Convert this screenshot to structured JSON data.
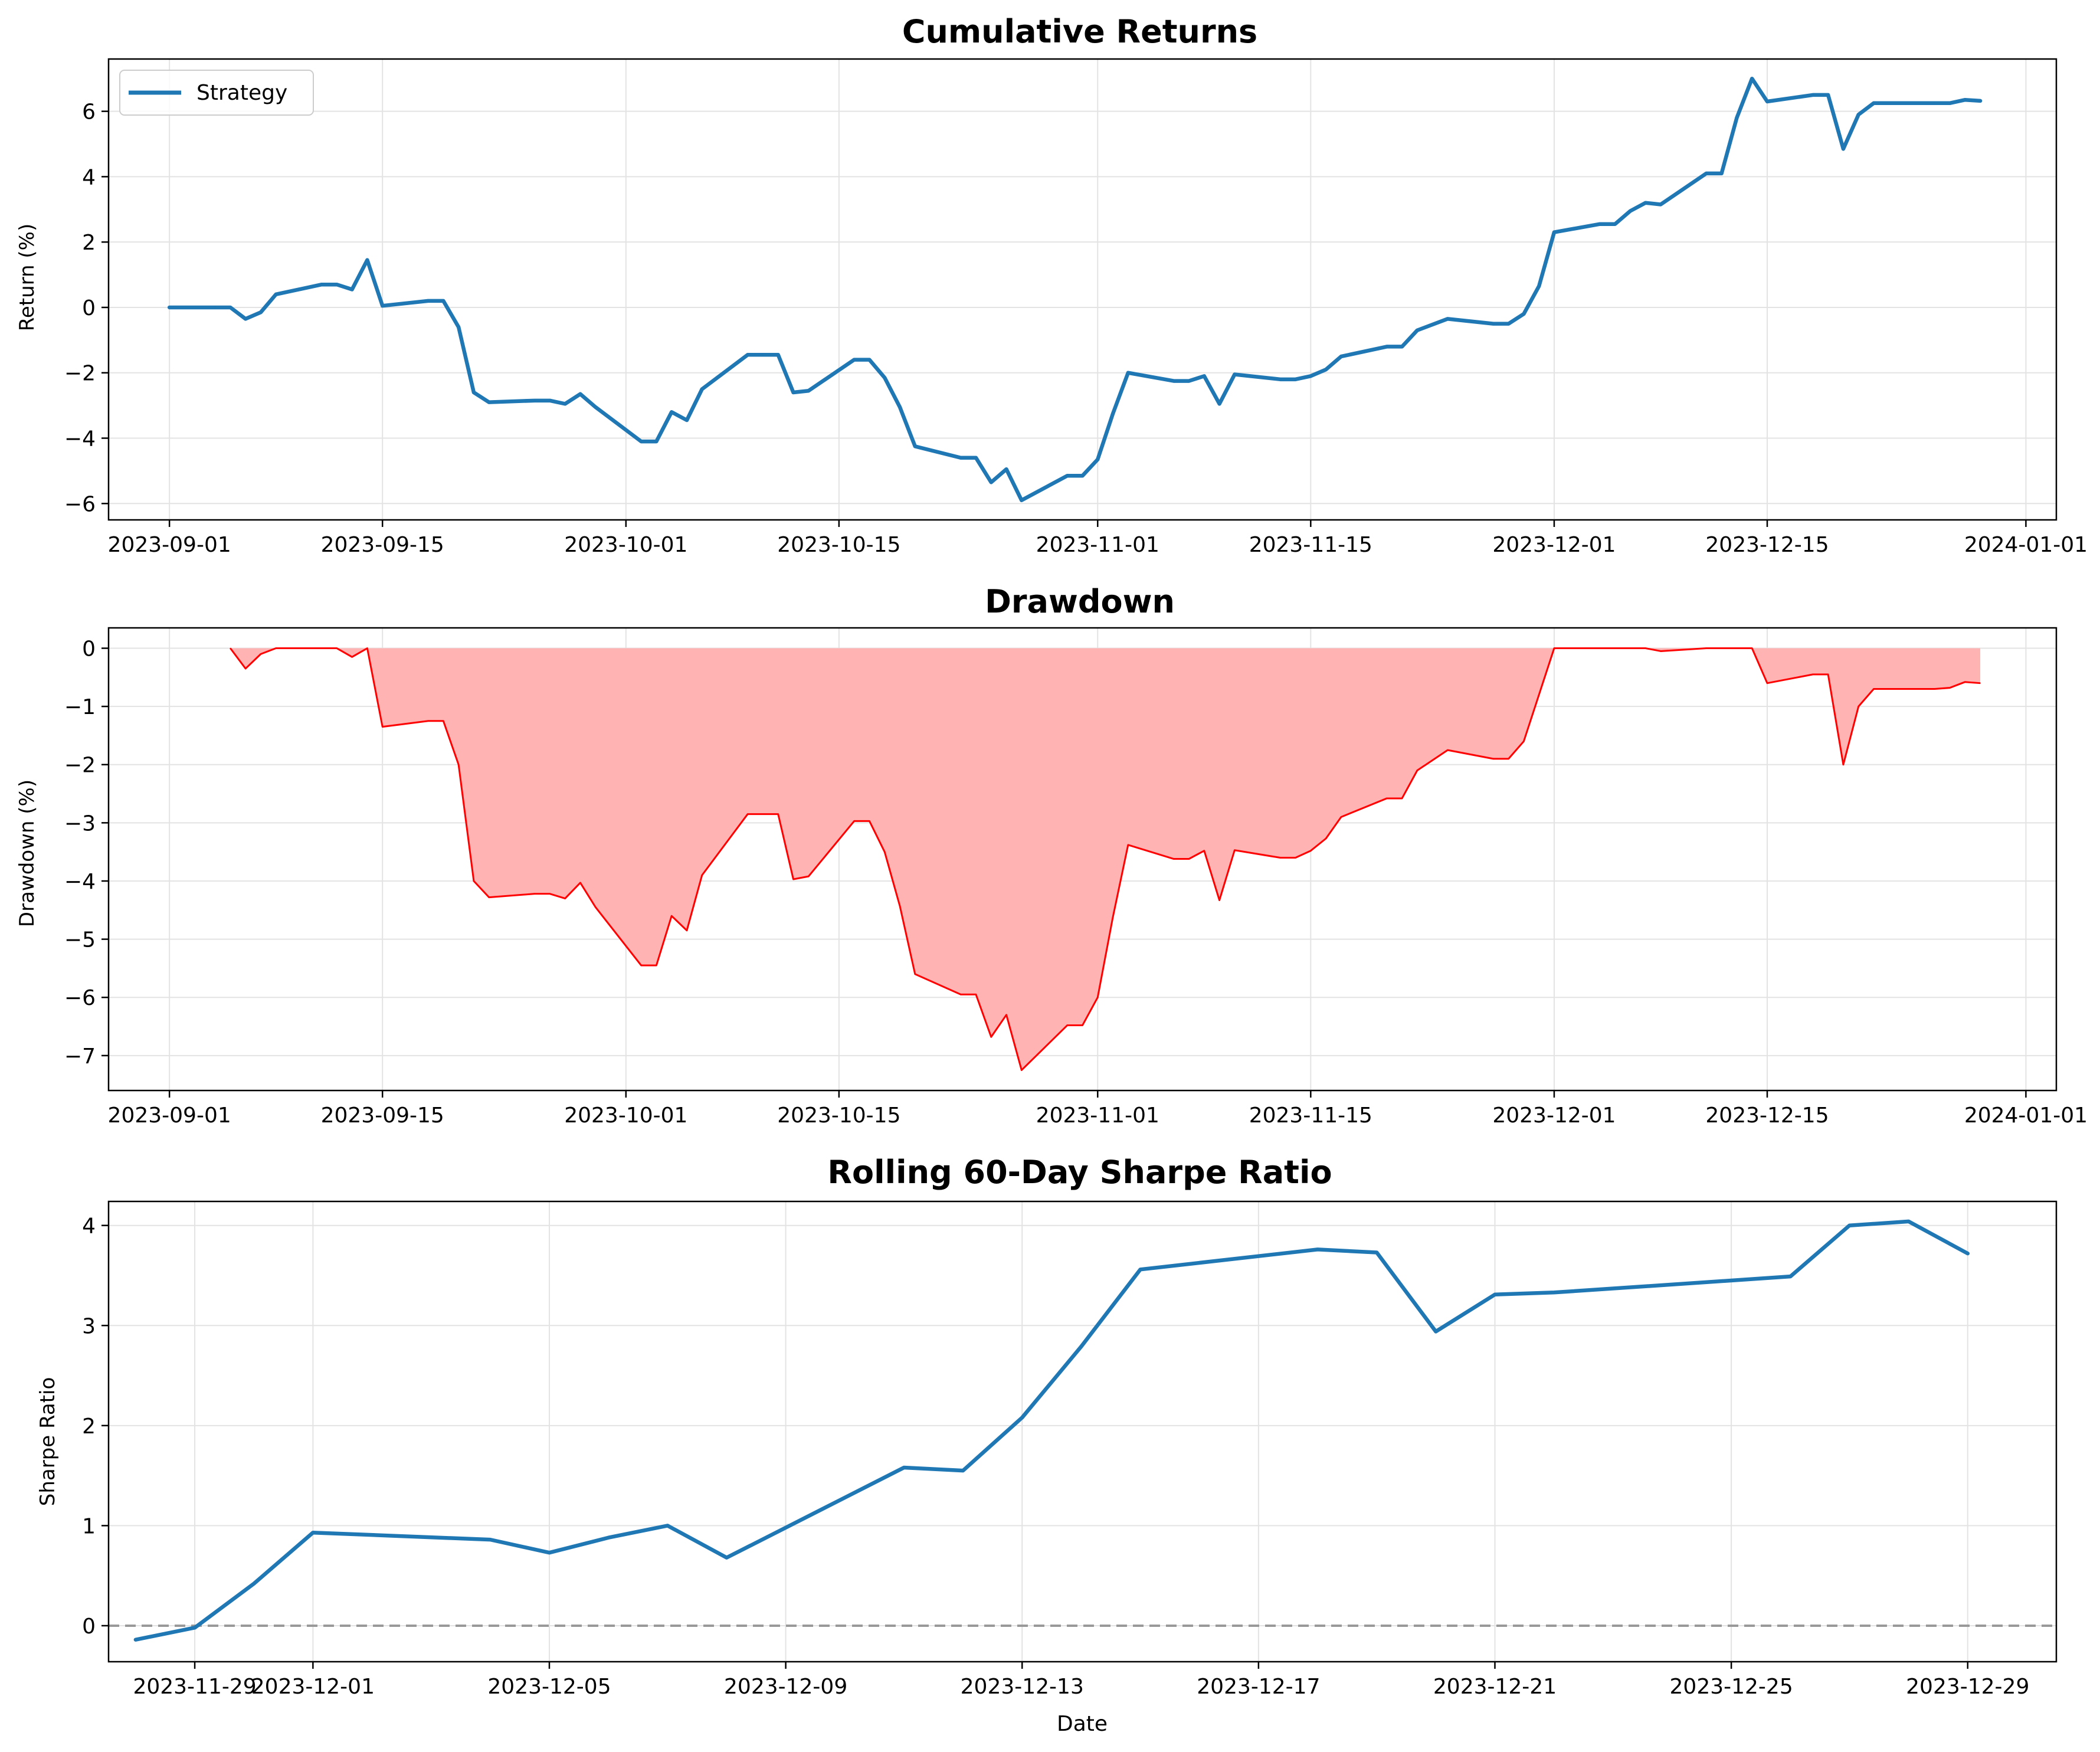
{
  "chart_data": [
    {
      "type": "line",
      "title": "Cumulative Returns",
      "xlabel": "",
      "ylabel": "Return (%)",
      "xlim": [
        "2023-08-28",
        "2024-01-03"
      ],
      "ylim": [
        -6.5,
        7.6
      ],
      "grid": true,
      "legend": "top-left",
      "x_ticks": [
        "2023-09-01",
        "2023-09-15",
        "2023-10-01",
        "2023-10-15",
        "2023-11-01",
        "2023-11-15",
        "2023-12-01",
        "2023-12-15",
        "2024-01-01"
      ],
      "y_ticks": [
        -6,
        -4,
        -2,
        0,
        2,
        4,
        6
      ],
      "series": [
        {
          "name": "Strategy",
          "color": "#1f77b4",
          "points": [
            [
              "2023-09-01",
              0.0
            ],
            [
              "2023-09-04",
              0.0
            ],
            [
              "2023-09-05",
              0.0
            ],
            [
              "2023-09-06",
              -0.35
            ],
            [
              "2023-09-07",
              -0.15
            ],
            [
              "2023-09-08",
              0.4
            ],
            [
              "2023-09-11",
              0.7
            ],
            [
              "2023-09-12",
              0.7
            ],
            [
              "2023-09-13",
              0.55
            ],
            [
              "2023-09-14",
              1.45
            ],
            [
              "2023-09-15",
              0.05
            ],
            [
              "2023-09-18",
              0.2
            ],
            [
              "2023-09-19",
              0.2
            ],
            [
              "2023-09-20",
              -0.6
            ],
            [
              "2023-09-21",
              -2.6
            ],
            [
              "2023-09-22",
              -2.9
            ],
            [
              "2023-09-25",
              -2.85
            ],
            [
              "2023-09-26",
              -2.85
            ],
            [
              "2023-09-27",
              -2.95
            ],
            [
              "2023-09-28",
              -2.65
            ],
            [
              "2023-09-29",
              -3.05
            ],
            [
              "2023-10-02",
              -4.1
            ],
            [
              "2023-10-03",
              -4.1
            ],
            [
              "2023-10-04",
              -3.2
            ],
            [
              "2023-10-05",
              -3.45
            ],
            [
              "2023-10-06",
              -2.5
            ],
            [
              "2023-10-09",
              -1.45
            ],
            [
              "2023-10-10",
              -1.45
            ],
            [
              "2023-10-11",
              -1.45
            ],
            [
              "2023-10-12",
              -2.6
            ],
            [
              "2023-10-13",
              -2.55
            ],
            [
              "2023-10-16",
              -1.6
            ],
            [
              "2023-10-17",
              -1.6
            ],
            [
              "2023-10-18",
              -2.15
            ],
            [
              "2023-10-19",
              -3.05
            ],
            [
              "2023-10-20",
              -4.25
            ],
            [
              "2023-10-23",
              -4.6
            ],
            [
              "2023-10-24",
              -4.6
            ],
            [
              "2023-10-25",
              -5.35
            ],
            [
              "2023-10-26",
              -4.95
            ],
            [
              "2023-10-27",
              -5.9
            ],
            [
              "2023-10-30",
              -5.15
            ],
            [
              "2023-10-31",
              -5.15
            ],
            [
              "2023-11-01",
              -4.65
            ],
            [
              "2023-11-02",
              -3.25
            ],
            [
              "2023-11-03",
              -2.0
            ],
            [
              "2023-11-06",
              -2.25
            ],
            [
              "2023-11-07",
              -2.25
            ],
            [
              "2023-11-08",
              -2.1
            ],
            [
              "2023-11-09",
              -2.95
            ],
            [
              "2023-11-10",
              -2.05
            ],
            [
              "2023-11-13",
              -2.2
            ],
            [
              "2023-11-14",
              -2.2
            ],
            [
              "2023-11-15",
              -2.1
            ],
            [
              "2023-11-16",
              -1.9
            ],
            [
              "2023-11-17",
              -1.5
            ],
            [
              "2023-11-20",
              -1.2
            ],
            [
              "2023-11-21",
              -1.2
            ],
            [
              "2023-11-22",
              -0.7
            ],
            [
              "2023-11-24",
              -0.35
            ],
            [
              "2023-11-27",
              -0.5
            ],
            [
              "2023-11-28",
              -0.5
            ],
            [
              "2023-11-29",
              -0.2
            ],
            [
              "2023-11-30",
              0.65
            ],
            [
              "2023-12-01",
              2.3
            ],
            [
              "2023-12-04",
              2.55
            ],
            [
              "2023-12-05",
              2.55
            ],
            [
              "2023-12-06",
              2.95
            ],
            [
              "2023-12-07",
              3.2
            ],
            [
              "2023-12-08",
              3.15
            ],
            [
              "2023-12-11",
              4.1
            ],
            [
              "2023-12-12",
              4.1
            ],
            [
              "2023-12-13",
              5.8
            ],
            [
              "2023-12-14",
              7.0
            ],
            [
              "2023-12-15",
              6.3
            ],
            [
              "2023-12-18",
              6.5
            ],
            [
              "2023-12-19",
              6.5
            ],
            [
              "2023-12-20",
              4.85
            ],
            [
              "2023-12-21",
              5.9
            ],
            [
              "2023-12-22",
              6.25
            ],
            [
              "2023-12-26",
              6.25
            ],
            [
              "2023-12-27",
              6.25
            ],
            [
              "2023-12-28",
              6.35
            ],
            [
              "2023-12-29",
              6.32
            ]
          ]
        }
      ]
    },
    {
      "type": "area",
      "title": "Drawdown",
      "xlabel": "",
      "ylabel": "Drawdown (%)",
      "xlim": [
        "2023-08-28",
        "2024-01-03"
      ],
      "ylim": [
        -7.6,
        0.35
      ],
      "grid": true,
      "x_ticks": [
        "2023-09-01",
        "2023-09-15",
        "2023-10-01",
        "2023-10-15",
        "2023-11-01",
        "2023-11-15",
        "2023-12-01",
        "2023-12-15",
        "2024-01-01"
      ],
      "y_ticks": [
        -7,
        -6,
        -5,
        -4,
        -3,
        -2,
        -1,
        0
      ],
      "line_color": "#ff0000",
      "fill_color": "#ffb3b3",
      "points": [
        [
          "2023-09-05",
          0.0
        ],
        [
          "2023-09-06",
          -0.35
        ],
        [
          "2023-09-07",
          -0.1
        ],
        [
          "2023-09-08",
          0.0
        ],
        [
          "2023-09-11",
          0.0
        ],
        [
          "2023-09-12",
          0.0
        ],
        [
          "2023-09-13",
          -0.15
        ],
        [
          "2023-09-14",
          0.0
        ],
        [
          "2023-09-15",
          -1.35
        ],
        [
          "2023-09-18",
          -1.25
        ],
        [
          "2023-09-19",
          -1.25
        ],
        [
          "2023-09-20",
          -2.0
        ],
        [
          "2023-09-21",
          -4.0
        ],
        [
          "2023-09-22",
          -4.28
        ],
        [
          "2023-09-25",
          -4.22
        ],
        [
          "2023-09-26",
          -4.22
        ],
        [
          "2023-09-27",
          -4.3
        ],
        [
          "2023-09-28",
          -4.03
        ],
        [
          "2023-09-29",
          -4.45
        ],
        [
          "2023-10-02",
          -5.45
        ],
        [
          "2023-10-03",
          -5.45
        ],
        [
          "2023-10-04",
          -4.6
        ],
        [
          "2023-10-05",
          -4.85
        ],
        [
          "2023-10-06",
          -3.9
        ],
        [
          "2023-10-09",
          -2.85
        ],
        [
          "2023-10-10",
          -2.85
        ],
        [
          "2023-10-11",
          -2.85
        ],
        [
          "2023-10-12",
          -3.97
        ],
        [
          "2023-10-13",
          -3.92
        ],
        [
          "2023-10-16",
          -2.97
        ],
        [
          "2023-10-17",
          -2.97
        ],
        [
          "2023-10-18",
          -3.5
        ],
        [
          "2023-10-19",
          -4.43
        ],
        [
          "2023-10-20",
          -5.6
        ],
        [
          "2023-10-23",
          -5.95
        ],
        [
          "2023-10-24",
          -5.95
        ],
        [
          "2023-10-25",
          -6.68
        ],
        [
          "2023-10-26",
          -6.3
        ],
        [
          "2023-10-27",
          -7.25
        ],
        [
          "2023-10-30",
          -6.48
        ],
        [
          "2023-10-31",
          -6.48
        ],
        [
          "2023-11-01",
          -6.0
        ],
        [
          "2023-11-02",
          -4.62
        ],
        [
          "2023-11-03",
          -3.38
        ],
        [
          "2023-11-06",
          -3.62
        ],
        [
          "2023-11-07",
          -3.62
        ],
        [
          "2023-11-08",
          -3.48
        ],
        [
          "2023-11-09",
          -4.33
        ],
        [
          "2023-11-10",
          -3.47
        ],
        [
          "2023-11-13",
          -3.6
        ],
        [
          "2023-11-14",
          -3.6
        ],
        [
          "2023-11-15",
          -3.48
        ],
        [
          "2023-11-16",
          -3.27
        ],
        [
          "2023-11-17",
          -2.9
        ],
        [
          "2023-11-20",
          -2.58
        ],
        [
          "2023-11-21",
          -2.58
        ],
        [
          "2023-11-22",
          -2.1
        ],
        [
          "2023-11-24",
          -1.75
        ],
        [
          "2023-11-27",
          -1.9
        ],
        [
          "2023-11-28",
          -1.9
        ],
        [
          "2023-11-29",
          -1.6
        ],
        [
          "2023-11-30",
          -0.8
        ],
        [
          "2023-12-01",
          0.0
        ],
        [
          "2023-12-04",
          0.0
        ],
        [
          "2023-12-05",
          0.0
        ],
        [
          "2023-12-06",
          0.0
        ],
        [
          "2023-12-07",
          0.0
        ],
        [
          "2023-12-08",
          -0.05
        ],
        [
          "2023-12-11",
          0.0
        ],
        [
          "2023-12-12",
          0.0
        ],
        [
          "2023-12-13",
          0.0
        ],
        [
          "2023-12-14",
          0.0
        ],
        [
          "2023-12-15",
          -0.6
        ],
        [
          "2023-12-18",
          -0.45
        ],
        [
          "2023-12-19",
          -0.45
        ],
        [
          "2023-12-20",
          -2.0
        ],
        [
          "2023-12-21",
          -1.0
        ],
        [
          "2023-12-22",
          -0.7
        ],
        [
          "2023-12-26",
          -0.7
        ],
        [
          "2023-12-27",
          -0.68
        ],
        [
          "2023-12-28",
          -0.58
        ],
        [
          "2023-12-29",
          -0.6
        ]
      ]
    },
    {
      "type": "line",
      "title": "Rolling 60-Day Sharpe Ratio",
      "xlabel": "Date",
      "ylabel": "Sharpe Ratio",
      "xlim": [
        "2023-11-27T13:00",
        "2023-12-30T12:00"
      ],
      "ylim": [
        -0.36,
        4.24
      ],
      "grid": true,
      "x_ticks": [
        "2023-11-29",
        "2023-12-01",
        "2023-12-05",
        "2023-12-09",
        "2023-12-13",
        "2023-12-17",
        "2023-12-21",
        "2023-12-25",
        "2023-12-29"
      ],
      "y_ticks": [
        0,
        1,
        2,
        3,
        4
      ],
      "reference_line": {
        "y": 0,
        "style": "dashed",
        "color": "#999999"
      },
      "series": [
        {
          "name": "",
          "color": "#1f77b4",
          "points": [
            [
              "2023-11-28",
              -0.14
            ],
            [
              "2023-11-29",
              -0.02
            ],
            [
              "2023-11-30",
              0.42
            ],
            [
              "2023-12-01",
              0.93
            ],
            [
              "2023-12-04",
              0.86
            ],
            [
              "2023-12-05",
              0.73
            ],
            [
              "2023-12-06",
              0.88
            ],
            [
              "2023-12-07",
              1.0
            ],
            [
              "2023-12-08",
              0.68
            ],
            [
              "2023-12-11",
              1.58
            ],
            [
              "2023-12-12",
              1.55
            ],
            [
              "2023-12-13",
              2.08
            ],
            [
              "2023-12-14",
              2.79
            ],
            [
              "2023-12-15",
              3.56
            ],
            [
              "2023-12-18",
              3.76
            ],
            [
              "2023-12-19",
              3.73
            ],
            [
              "2023-12-20",
              2.94
            ],
            [
              "2023-12-21",
              3.31
            ],
            [
              "2023-12-22",
              3.33
            ],
            [
              "2023-12-26",
              3.49
            ],
            [
              "2023-12-27",
              4.0
            ],
            [
              "2023-12-28",
              4.04
            ],
            [
              "2023-12-29",
              3.72
            ]
          ]
        }
      ]
    }
  ]
}
